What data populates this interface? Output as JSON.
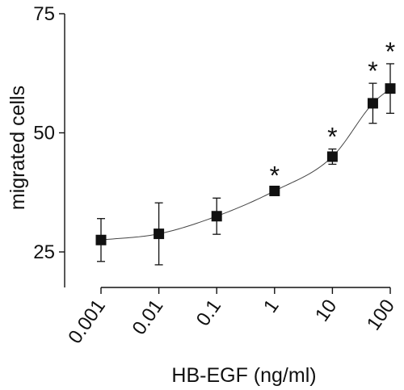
{
  "chart_data": {
    "type": "scatter",
    "xlabel": "HB-EGF (ng/ml)",
    "ylabel": "migrated cells",
    "x_scale": "log",
    "xlim": [
      0.001,
      100
    ],
    "ylim": [
      15,
      75
    ],
    "y_ticks": [
      25,
      50,
      75
    ],
    "y_tick_labels": [
      "25",
      "50",
      "75"
    ],
    "x_ticks": [
      0.001,
      0.01,
      0.1,
      1,
      10,
      100
    ],
    "x_tick_labels": [
      "0.001",
      "0.01",
      "0.1",
      "1",
      "10",
      "100"
    ],
    "grid": false,
    "legend": "none",
    "marker": "square",
    "fit_line": true,
    "significance_marker": "*",
    "points": [
      {
        "x": 0.001,
        "y": 27.5,
        "err": 4.5,
        "significant": false
      },
      {
        "x": 0.01,
        "y": 28.8,
        "err": 6.5,
        "significant": false
      },
      {
        "x": 0.1,
        "y": 32.5,
        "err": 3.8,
        "significant": false
      },
      {
        "x": 1,
        "y": 37.8,
        "err": 0.7,
        "significant": true
      },
      {
        "x": 10,
        "y": 45.0,
        "err": 1.6,
        "significant": true
      },
      {
        "x": 50,
        "y": 56.2,
        "err": 4.2,
        "significant": true
      },
      {
        "x": 100,
        "y": 59.3,
        "err": 5.2,
        "significant": true
      }
    ],
    "colors": {
      "marker": "#111111",
      "axis": "#111111",
      "fit_line": "#444444"
    }
  }
}
